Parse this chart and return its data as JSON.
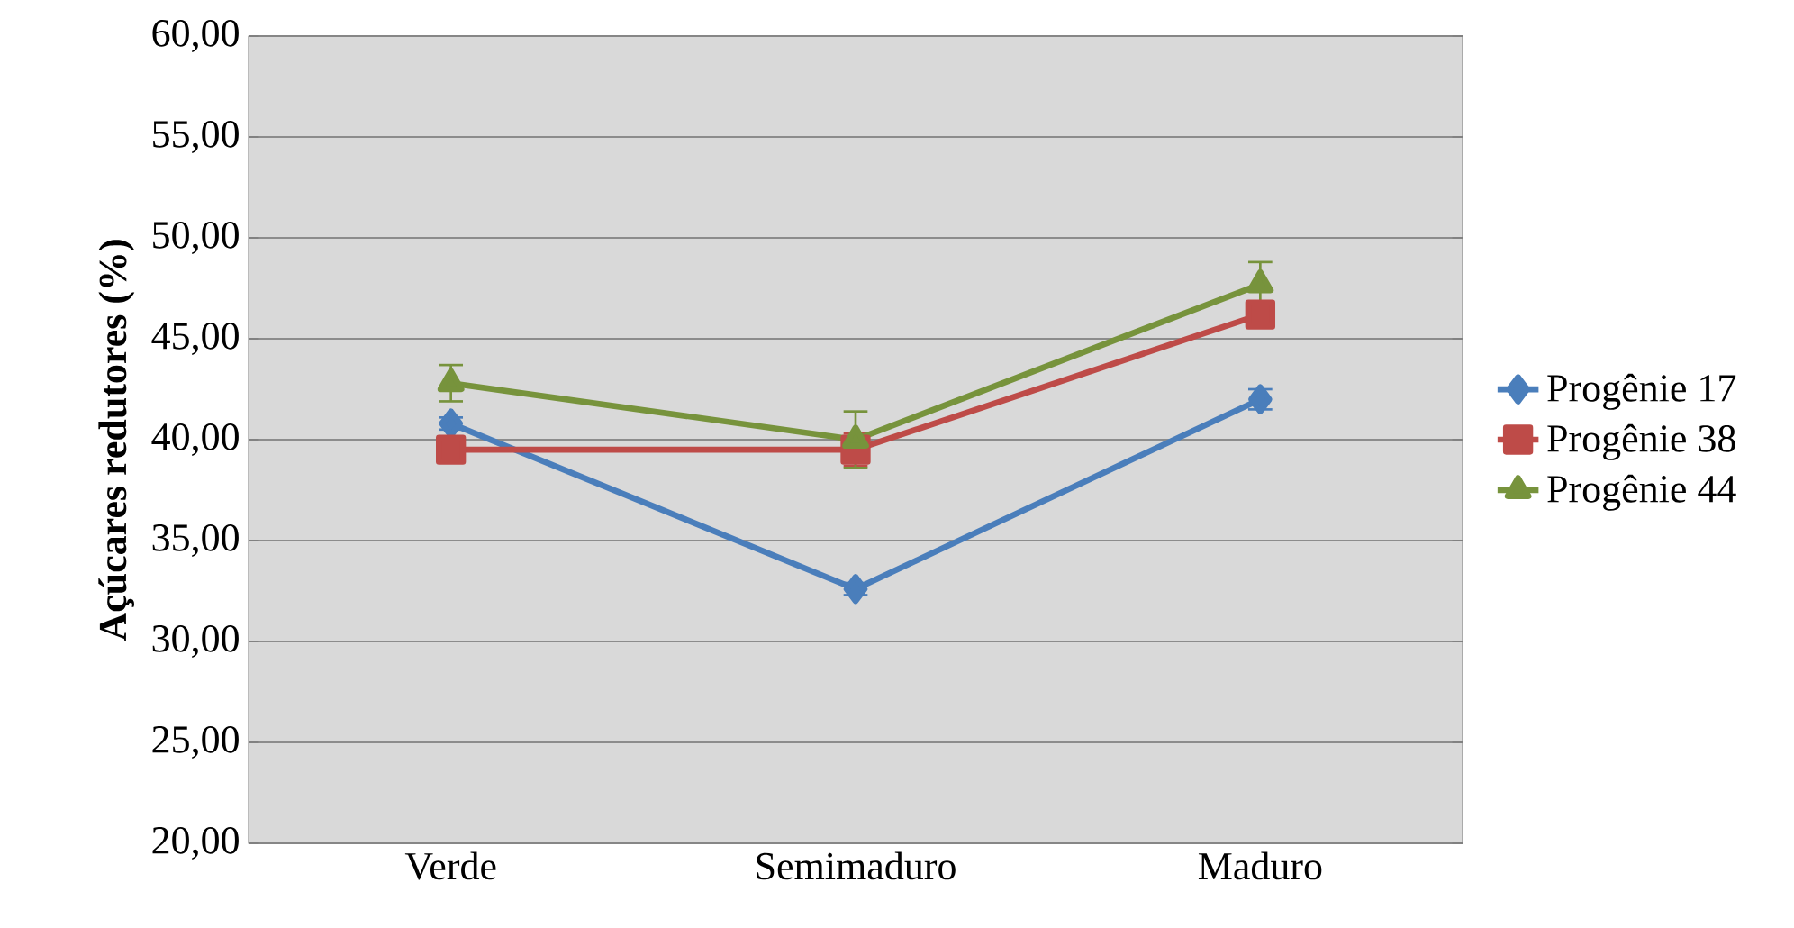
{
  "chart_data": {
    "type": "line",
    "ylabel": "Açúcares redutores (%)",
    "categories": [
      "Verde",
      "Semimaduro",
      "Maduro"
    ],
    "series": [
      {
        "name": "Progênie 17",
        "color": "#4a7ebb",
        "marker": "diamond",
        "values": [
          40.8,
          32.6,
          42.0
        ],
        "errors": [
          0.3,
          0.3,
          0.5
        ]
      },
      {
        "name": "Progênie 38",
        "color": "#be4b48",
        "marker": "square",
        "values": [
          39.5,
          39.5,
          46.2
        ],
        "errors": [
          0.6,
          0.8,
          0.5
        ]
      },
      {
        "name": "Progênie 44",
        "color": "#77933c",
        "marker": "triangle",
        "values": [
          42.8,
          40.0,
          47.7
        ],
        "errors": [
          0.9,
          1.4,
          1.1
        ]
      }
    ],
    "ylim": [
      20,
      60
    ],
    "yticks": [
      {
        "value": 20,
        "label": "20,00"
      },
      {
        "value": 25,
        "label": "25,00"
      },
      {
        "value": 30,
        "label": "30,00"
      },
      {
        "value": 35,
        "label": "35,00"
      },
      {
        "value": 40,
        "label": "40,00"
      },
      {
        "value": 45,
        "label": "45,00"
      },
      {
        "value": 50,
        "label": "50,00"
      },
      {
        "value": 55,
        "label": "55,00"
      },
      {
        "value": 60,
        "label": "60,00"
      }
    ],
    "grid": "y",
    "legend": "right",
    "line_style": "solid"
  }
}
